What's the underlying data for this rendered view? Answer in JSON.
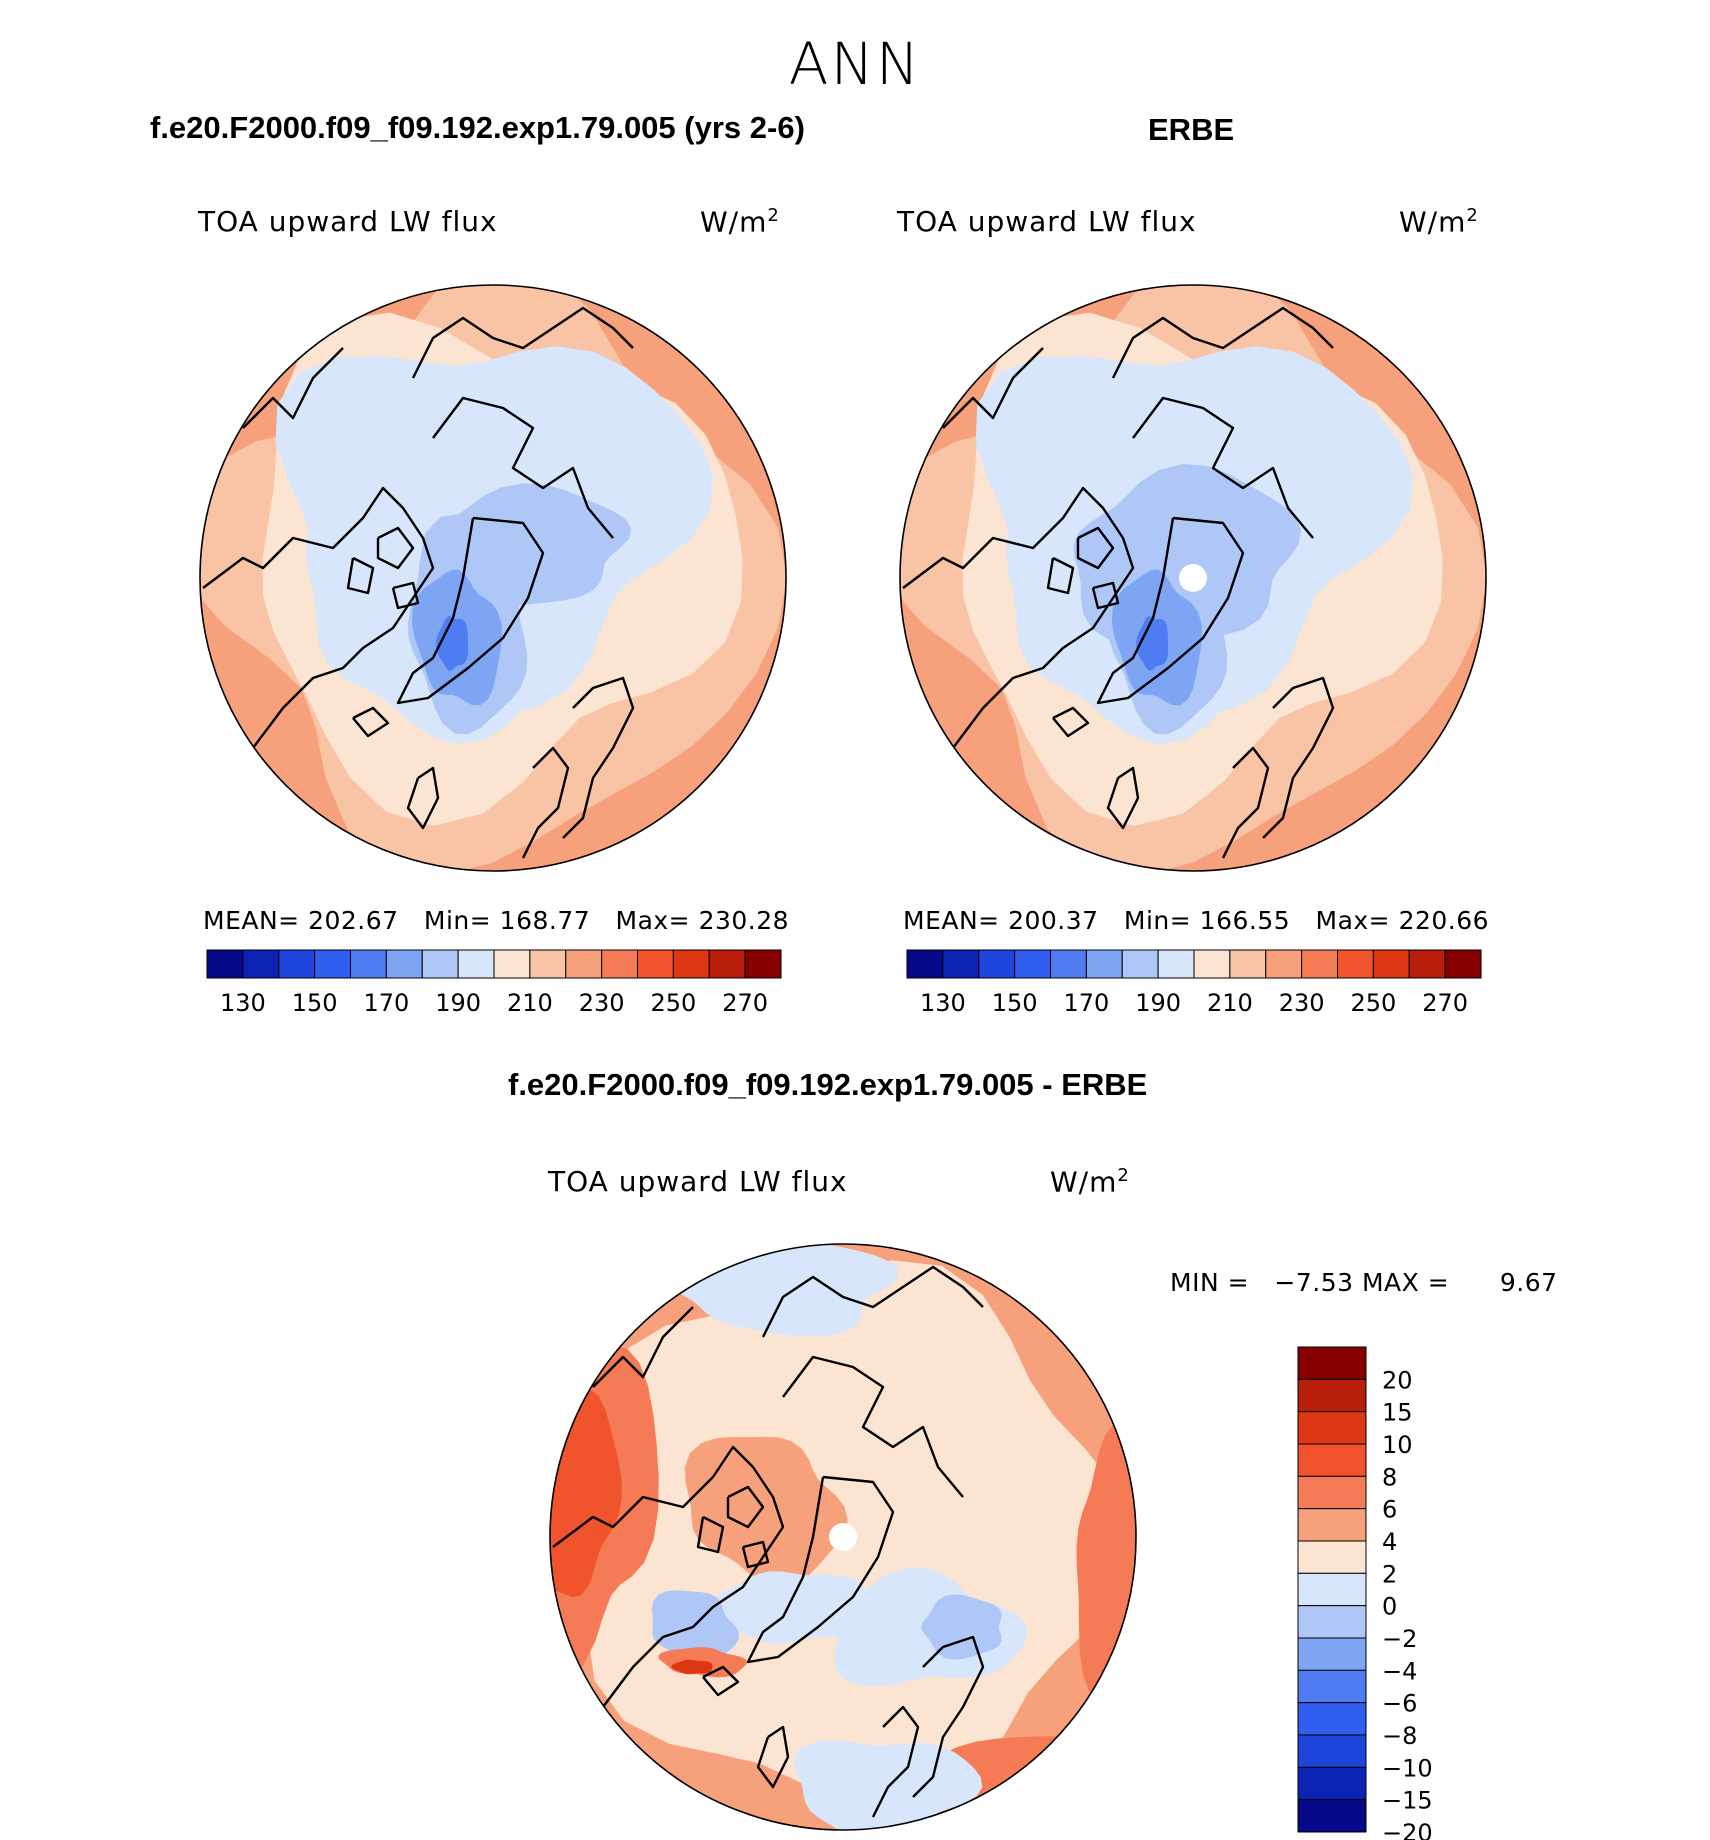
{
  "title": "ANN",
  "colors": {
    "land_line": "#000000",
    "bg": "#ffffff"
  },
  "chart_data": [
    {
      "type": "heatmap",
      "projection": "north-polar-stereographic",
      "title": "f.e20.F2000.f09_f09.192.exp1.79.005 (yrs 2-6)",
      "variable": "TOA upward LW flux",
      "units": "W/m",
      "units_exp": "2",
      "stats": {
        "mean_label": "MEAN=",
        "mean": "202.67",
        "min_label": "Min=",
        "min": "168.77",
        "max_label": "Max=",
        "max": "230.28"
      },
      "colorbar": {
        "colors": [
          "#08088a",
          "#0b22b4",
          "#1f46dc",
          "#2f5ef0",
          "#4f7cf0",
          "#7ea5f3",
          "#afc7f6",
          "#d7e6fa",
          "#fbe4d1",
          "#f9c3a6",
          "#f6a07c",
          "#f47b55",
          "#f1532d",
          "#dc3613",
          "#b81e0a",
          "#870000"
        ],
        "tick_labels": [
          "130",
          "150",
          "170",
          "190",
          "210",
          "230",
          "250",
          "270"
        ]
      }
    },
    {
      "type": "heatmap",
      "projection": "north-polar-stereographic",
      "title": "ERBE",
      "variable": "TOA upward LW flux",
      "units": "W/m",
      "units_exp": "2",
      "stats": {
        "mean_label": "MEAN=",
        "mean": "200.37",
        "min_label": "Min=",
        "min": "166.55",
        "max_label": "Max=",
        "max": "220.66"
      },
      "colorbar": {
        "colors": [
          "#08088a",
          "#0b22b4",
          "#1f46dc",
          "#2f5ef0",
          "#4f7cf0",
          "#7ea5f3",
          "#afc7f6",
          "#d7e6fa",
          "#fbe4d1",
          "#f9c3a6",
          "#f6a07c",
          "#f47b55",
          "#f1532d",
          "#dc3613",
          "#b81e0a",
          "#870000"
        ],
        "tick_labels": [
          "130",
          "150",
          "170",
          "190",
          "210",
          "230",
          "250",
          "270"
        ]
      }
    },
    {
      "type": "heatmap",
      "projection": "north-polar-stereographic",
      "title": "f.e20.F2000.f09_f09.192.exp1.79.005 - ERBE",
      "variable": "TOA upward LW flux",
      "units": "W/m",
      "units_exp": "2",
      "stats": {
        "min_label": "MIN =",
        "min": "−7.53",
        "max_label": "MAX =",
        "max": "9.67"
      },
      "colorbar": {
        "colors": [
          "#870000",
          "#b81e0a",
          "#dc3613",
          "#f1532d",
          "#f47b55",
          "#f6a07c",
          "#fbe4d1",
          "#d7e6fa",
          "#afc7f6",
          "#7ea5f3",
          "#4f7cf0",
          "#2f5ef0",
          "#1f46dc",
          "#0b22b4",
          "#08088a"
        ],
        "tick_labels": [
          "20",
          "15",
          "10",
          "8",
          "6",
          "4",
          "2",
          "0",
          "−2",
          "−4",
          "−6",
          "−8",
          "−10",
          "−15",
          "−20"
        ]
      }
    }
  ]
}
